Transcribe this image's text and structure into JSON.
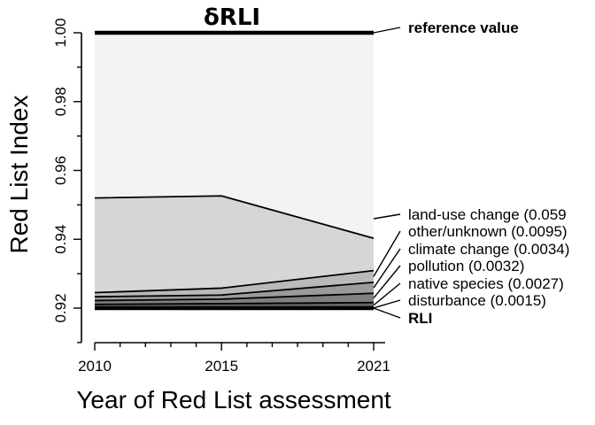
{
  "chart_data": {
    "type": "area",
    "title": "δRLI",
    "xlabel": "Year of Red List assessment",
    "ylabel": "Red List Index",
    "xlim": [
      2010,
      2021
    ],
    "ylim": [
      0.91,
      1.0
    ],
    "x_ticks": [
      2010,
      2015,
      2021
    ],
    "x_tick_labels": [
      "2010",
      "2015",
      "2021"
    ],
    "y_ticks": [
      0.92,
      0.94,
      0.96,
      0.98,
      1.0
    ],
    "y_tick_labels": [
      "0.92",
      "0.94",
      "0.96",
      "0.98",
      "1.00"
    ],
    "x": [
      2010,
      2015,
      2021
    ],
    "reference": {
      "label": "reference value",
      "values": [
        1.0,
        1.0,
        1.0
      ],
      "color": "#000000"
    },
    "rli": {
      "label": "RLI",
      "values": [
        0.92,
        0.92,
        0.92
      ],
      "color": "#000000"
    },
    "series": [
      {
        "name": "land-use change (0.059",
        "upper": [
          0.952,
          0.9526,
          0.9403
        ],
        "lower": [
          0.9245,
          0.9258,
          0.9309
        ],
        "color": "#d6d6d6"
      },
      {
        "name": "other/unknown (0.0095)",
        "upper": [
          0.9245,
          0.9258,
          0.9309
        ],
        "lower": [
          0.9233,
          0.9238,
          0.9275
        ],
        "color": "#b9b9b9"
      },
      {
        "name": "climate change (0.0034)",
        "upper": [
          0.9233,
          0.9238,
          0.9275
        ],
        "lower": [
          0.9222,
          0.9226,
          0.9243
        ],
        "color": "#9b9b9b"
      },
      {
        "name": "pollution (0.0032)",
        "upper": [
          0.9222,
          0.9226,
          0.9243
        ],
        "lower": [
          0.9211,
          0.9213,
          0.9216
        ],
        "color": "#808080"
      },
      {
        "name": "native species (0.0027)",
        "upper": [
          0.9211,
          0.9213,
          0.9216
        ],
        "lower": [
          0.9202,
          0.9203,
          0.9201
        ],
        "color": "#666666"
      },
      {
        "name": "disturbance (0.0015)",
        "upper": [
          0.9202,
          0.9203,
          0.9201
        ],
        "lower": [
          0.92,
          0.92,
          0.92
        ],
        "color": "#444444"
      }
    ],
    "background_band_color": "#f3f3f3",
    "grid": false,
    "legend_placement": "right"
  }
}
